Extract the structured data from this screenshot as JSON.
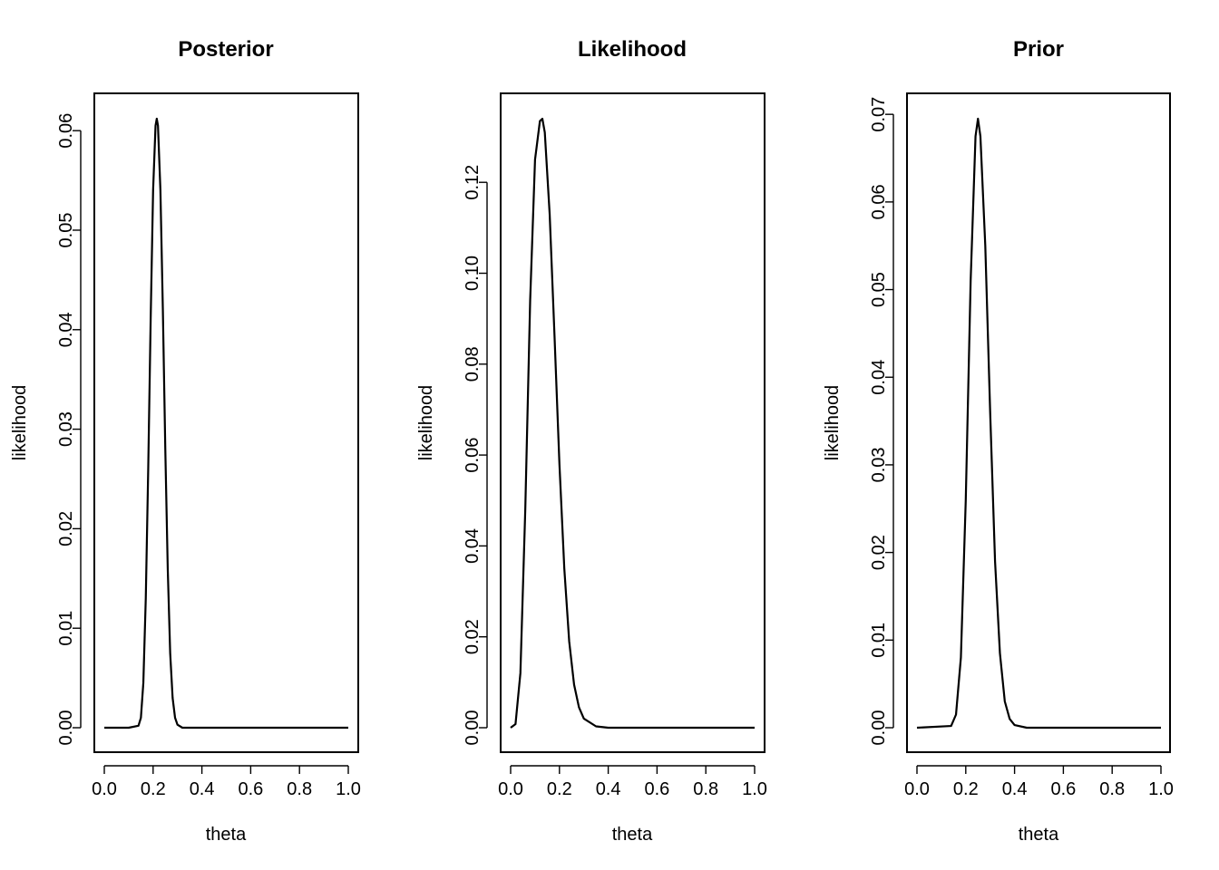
{
  "chart_data": [
    {
      "type": "line",
      "title": "Posterior",
      "xlabel": "theta",
      "ylabel": "likelihood",
      "xlim": [
        0,
        1
      ],
      "ylim": [
        0,
        0.0612
      ],
      "xticks": [
        "0.0",
        "0.2",
        "0.4",
        "0.6",
        "0.8",
        "1.0"
      ],
      "yticks": [
        "0.00",
        "0.01",
        "0.02",
        "0.03",
        "0.04",
        "0.05",
        "0.06"
      ],
      "series": [
        {
          "x": [
            0,
            0.1,
            0.14,
            0.15,
            0.16,
            0.17,
            0.18,
            0.19,
            0.2,
            0.21,
            0.215,
            0.22,
            0.23,
            0.24,
            0.25,
            0.26,
            0.27,
            0.28,
            0.29,
            0.3,
            0.32,
            0.4,
            1.0
          ],
          "y": [
            0,
            0,
            0.0002,
            0.001,
            0.0045,
            0.013,
            0.026,
            0.041,
            0.054,
            0.0605,
            0.0612,
            0.0605,
            0.054,
            0.042,
            0.028,
            0.016,
            0.0075,
            0.003,
            0.001,
            0.0003,
            0,
            0,
            0
          ]
        }
      ]
    },
    {
      "type": "line",
      "title": "Likelihood",
      "xlabel": "theta",
      "ylabel": "likelihood",
      "xlim": [
        0,
        1
      ],
      "ylim": [
        0,
        0.134
      ],
      "xticks": [
        "0.0",
        "0.2",
        "0.4",
        "0.6",
        "0.8",
        "1.0"
      ],
      "yticks": [
        "0.00",
        "0.02",
        "0.04",
        "0.06",
        "0.08",
        "0.10",
        "0.12"
      ],
      "series": [
        {
          "x": [
            0,
            0.02,
            0.04,
            0.06,
            0.08,
            0.1,
            0.12,
            0.13,
            0.14,
            0.16,
            0.18,
            0.2,
            0.22,
            0.24,
            0.26,
            0.28,
            0.3,
            0.35,
            0.4,
            1.0
          ],
          "y": [
            0,
            0.0008,
            0.012,
            0.048,
            0.094,
            0.125,
            0.1335,
            0.134,
            0.131,
            0.113,
            0.086,
            0.058,
            0.035,
            0.019,
            0.0095,
            0.0045,
            0.002,
            0.0003,
            0,
            0
          ]
        }
      ]
    },
    {
      "type": "line",
      "title": "Prior",
      "xlabel": "theta",
      "ylabel": "likelihood",
      "xlim": [
        0,
        1
      ],
      "ylim": [
        0,
        0.0695
      ],
      "xticks": [
        "0.0",
        "0.2",
        "0.4",
        "0.6",
        "0.8",
        "1.0"
      ],
      "yticks": [
        "0.00",
        "0.01",
        "0.02",
        "0.03",
        "0.04",
        "0.05",
        "0.06",
        "0.07"
      ],
      "series": [
        {
          "x": [
            0,
            0.14,
            0.16,
            0.18,
            0.2,
            0.22,
            0.24,
            0.25,
            0.26,
            0.28,
            0.3,
            0.32,
            0.34,
            0.36,
            0.38,
            0.4,
            0.45,
            1.0
          ],
          "y": [
            0,
            0.0002,
            0.0015,
            0.008,
            0.026,
            0.051,
            0.0675,
            0.0695,
            0.0675,
            0.055,
            0.036,
            0.019,
            0.0085,
            0.003,
            0.001,
            0.0003,
            0,
            0
          ]
        }
      ]
    }
  ]
}
